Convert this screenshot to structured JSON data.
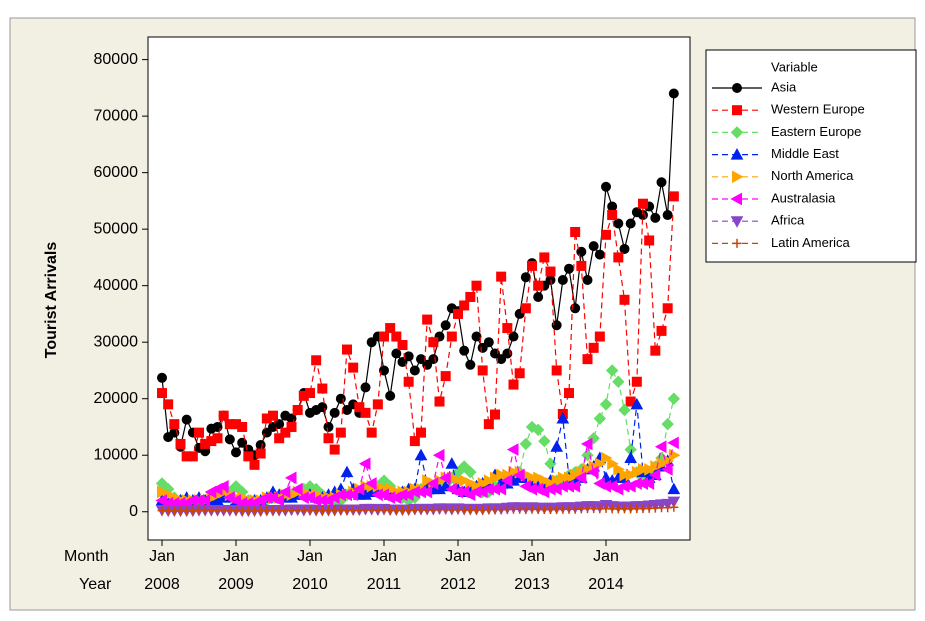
{
  "chart_data": {
    "type": "line",
    "ylabel": "Tourist Arrivals",
    "month_label": "Month",
    "year_label": "Year",
    "categories": [
      "Jan",
      null,
      null,
      null,
      null,
      null,
      null,
      null,
      null,
      null,
      null,
      null,
      "Jan",
      null,
      null,
      null,
      null,
      null,
      null,
      null,
      null,
      null,
      null,
      null,
      "Jan",
      null,
      null,
      null,
      null,
      null,
      null,
      null,
      null,
      null,
      null,
      null,
      "Jan",
      null,
      null,
      null,
      null,
      null,
      null,
      null,
      null,
      null,
      null,
      null,
      "Jan",
      null,
      null,
      null,
      null,
      null,
      null,
      null,
      null,
      null,
      null,
      null,
      "Jan",
      null,
      null,
      null,
      null,
      null,
      null,
      null,
      null,
      null,
      null,
      null,
      "Jan",
      null,
      null,
      null,
      null,
      null,
      null,
      null,
      null,
      null,
      null,
      null
    ],
    "years": [
      2008,
      null,
      null,
      null,
      null,
      null,
      null,
      null,
      null,
      null,
      null,
      null,
      2009,
      null,
      null,
      null,
      null,
      null,
      null,
      null,
      null,
      null,
      null,
      null,
      2010,
      null,
      null,
      null,
      null,
      null,
      null,
      null,
      null,
      null,
      null,
      null,
      2011,
      null,
      null,
      null,
      null,
      null,
      null,
      null,
      null,
      null,
      null,
      null,
      2012,
      null,
      null,
      null,
      null,
      null,
      null,
      null,
      null,
      null,
      null,
      null,
      2013,
      null,
      null,
      null,
      null,
      null,
      null,
      null,
      null,
      null,
      null,
      null,
      2014,
      null,
      null,
      null,
      null,
      null,
      null,
      null,
      null,
      null,
      null,
      null
    ],
    "ylim": [
      -5000,
      84000
    ],
    "yticks": [
      0,
      10000,
      20000,
      30000,
      40000,
      50000,
      60000,
      70000,
      80000
    ],
    "legend": "right",
    "legend_title": "Variable",
    "series": [
      {
        "name": "Asia",
        "color": "#000000",
        "marker": "circle",
        "line_style": "solid",
        "values": [
          23700,
          13200,
          14000,
          11500,
          16300,
          14000,
          11300,
          10700,
          14700,
          15000,
          17000,
          12800,
          10500,
          12200,
          11000,
          10000,
          11800,
          14000,
          15000,
          15500,
          17000,
          16500,
          18000,
          21000,
          17500,
          18000,
          18500,
          15000,
          17500,
          20000,
          18000,
          19000,
          17500,
          22000,
          30000,
          31000,
          25000,
          20500,
          28000,
          26500,
          27500,
          25000,
          27000,
          26000,
          27000,
          31000,
          33000,
          36000,
          35500,
          28500,
          26000,
          31000,
          29000,
          30000,
          28000,
          27000,
          28000,
          31000,
          35000,
          41500,
          44000,
          38000,
          40000,
          41000,
          33000,
          41000,
          43000,
          36000,
          46000,
          41000,
          47000,
          45500,
          57500,
          54000,
          51000,
          46500,
          51000,
          53000,
          52500,
          54000,
          52000,
          58300,
          52500,
          74000
        ]
      },
      {
        "name": "Western Europe",
        "color": "#ff0000",
        "marker": "square",
        "line_style": "dashed",
        "values": [
          21000,
          19000,
          15500,
          12000,
          9800,
          9800,
          14000,
          12000,
          12500,
          13000,
          17000,
          15500,
          15500,
          15000,
          9800,
          8300,
          10300,
          16500,
          17000,
          13000,
          14000,
          15000,
          18000,
          20500,
          21000,
          26800,
          21800,
          13000,
          11000,
          14000,
          28700,
          25500,
          18500,
          17500,
          14000,
          19000,
          31000,
          32500,
          31000,
          29500,
          23000,
          12500,
          14000,
          34000,
          30000,
          19500,
          24000,
          31000,
          35000,
          36500,
          38000,
          40000,
          25000,
          15500,
          17200,
          41600,
          32500,
          22500,
          24500,
          36000,
          43500,
          40000,
          45000,
          42500,
          25000,
          17300,
          21000,
          49500,
          43500,
          27000,
          29000,
          31000,
          49000,
          52500,
          45000,
          37500,
          19500,
          23000,
          54500,
          48000,
          28500,
          32000,
          36000,
          55800
        ]
      },
      {
        "name": "Eastern Europe",
        "color": "#66dd66",
        "marker": "diamond",
        "line_style": "dashed",
        "values": [
          5000,
          4000,
          2500,
          2000,
          1500,
          1500,
          2000,
          2000,
          2500,
          3000,
          3500,
          3500,
          4500,
          3500,
          2000,
          1500,
          1500,
          2000,
          2500,
          2500,
          3000,
          3000,
          3500,
          4000,
          4500,
          4000,
          3000,
          2000,
          1500,
          2000,
          3000,
          3500,
          3500,
          3500,
          4000,
          4500,
          5500,
          4500,
          3000,
          2500,
          2000,
          2500,
          4000,
          4500,
          4000,
          4500,
          5000,
          6000,
          7000,
          8000,
          7000,
          4500,
          3500,
          3500,
          4500,
          5000,
          5000,
          6000,
          7000,
          12000,
          15000,
          14500,
          12500,
          8500,
          5500,
          5000,
          6500,
          7000,
          7500,
          10000,
          13000,
          16500,
          19000,
          25000,
          23000,
          18000,
          11000,
          7000,
          6000,
          7000,
          8000,
          9500,
          15500,
          20000
        ]
      },
      {
        "name": "Middle East",
        "color": "#0022ee",
        "marker": "triangle-up",
        "line_style": "dashed",
        "values": [
          2000,
          1500,
          1500,
          2000,
          2500,
          2000,
          2500,
          2000,
          2000,
          2000,
          2500,
          2500,
          2000,
          1500,
          1500,
          2000,
          2000,
          2500,
          3500,
          3000,
          2500,
          2500,
          3000,
          3000,
          3000,
          2500,
          2500,
          3000,
          3500,
          4000,
          7000,
          4000,
          3000,
          3000,
          3500,
          4000,
          3500,
          3000,
          3000,
          3500,
          4000,
          4000,
          10000,
          5000,
          4000,
          4000,
          4500,
          8500,
          4000,
          3500,
          4000,
          4500,
          5000,
          4500,
          6500,
          5000,
          5000,
          5500,
          6000,
          6000,
          5000,
          4500,
          5000,
          5500,
          11500,
          16500,
          6000,
          5500,
          6000,
          7500,
          8000,
          9500,
          6000,
          5500,
          6000,
          6000,
          9500,
          19000,
          7000,
          6000,
          6500,
          8000,
          9000,
          4000
        ]
      },
      {
        "name": "North America",
        "color": "#ffa500",
        "marker": "triangle-right",
        "line_style": "dashed",
        "values": [
          3500,
          3000,
          2500,
          2000,
          2000,
          2000,
          2000,
          2000,
          2500,
          3000,
          3500,
          3000,
          2500,
          2500,
          2000,
          2000,
          2000,
          2500,
          2500,
          2500,
          3000,
          3000,
          3500,
          3500,
          3000,
          3000,
          2500,
          2500,
          2500,
          3000,
          3000,
          3500,
          4000,
          4500,
          4500,
          4500,
          4000,
          4000,
          3500,
          3500,
          3500,
          4000,
          4000,
          5500,
          5000,
          5500,
          6000,
          6000,
          5500,
          5500,
          5000,
          4500,
          5000,
          5500,
          6000,
          6500,
          6500,
          7000,
          7000,
          6500,
          6000,
          6000,
          5500,
          5000,
          5500,
          6000,
          6000,
          6500,
          7000,
          7500,
          8000,
          8500,
          9500,
          8500,
          7500,
          6500,
          6500,
          7000,
          7500,
          7500,
          8000,
          8500,
          9000,
          10000
        ]
      },
      {
        "name": "Australasia",
        "color": "#ff00ff",
        "marker": "triangle-left",
        "line_style": "dashed",
        "values": [
          2000,
          1500,
          1500,
          1500,
          1500,
          2000,
          2000,
          2000,
          3500,
          4000,
          4500,
          2500,
          2000,
          1500,
          1500,
          1500,
          2000,
          2500,
          2500,
          2000,
          3500,
          6000,
          4000,
          2500,
          2500,
          2000,
          2000,
          2000,
          2500,
          3000,
          3000,
          3000,
          4000,
          8500,
          5000,
          3000,
          3000,
          2500,
          2500,
          3000,
          3000,
          3500,
          3500,
          3500,
          5000,
          10000,
          6000,
          4000,
          3500,
          3500,
          3000,
          3500,
          3500,
          4000,
          4000,
          4000,
          5500,
          11000,
          6500,
          4500,
          4000,
          4000,
          3500,
          4000,
          4000,
          4500,
          4500,
          4500,
          6000,
          12000,
          7000,
          5000,
          4500,
          4500,
          4000,
          4500,
          4500,
          5000,
          5000,
          5000,
          6500,
          11500,
          7500,
          12200
        ]
      },
      {
        "name": "Africa",
        "color": "#8844cc",
        "marker": "triangle-down",
        "line_style": "dashed",
        "values": [
          300,
          200,
          200,
          200,
          200,
          200,
          300,
          300,
          300,
          300,
          300,
          300,
          300,
          200,
          200,
          200,
          200,
          300,
          300,
          300,
          300,
          400,
          400,
          300,
          400,
          300,
          300,
          300,
          300,
          400,
          400,
          400,
          400,
          500,
          500,
          400,
          500,
          400,
          400,
          400,
          400,
          500,
          500,
          500,
          500,
          600,
          600,
          500,
          600,
          500,
          500,
          500,
          500,
          600,
          600,
          600,
          700,
          800,
          800,
          700,
          800,
          700,
          700,
          700,
          700,
          800,
          800,
          800,
          900,
          1000,
          1000,
          900,
          1200,
          1000,
          900,
          900,
          900,
          1000,
          1000,
          1100,
          1200,
          1300,
          1400,
          1800
        ]
      },
      {
        "name": "Latin America",
        "color": "#cc4400",
        "marker": "cross",
        "line_style": "dashed",
        "values": [
          200,
          150,
          150,
          150,
          150,
          150,
          200,
          200,
          200,
          200,
          200,
          200,
          200,
          150,
          150,
          150,
          150,
          200,
          200,
          200,
          200,
          250,
          250,
          200,
          250,
          200,
          200,
          200,
          200,
          250,
          250,
          250,
          250,
          300,
          300,
          250,
          300,
          250,
          250,
          250,
          250,
          300,
          300,
          300,
          300,
          350,
          350,
          300,
          350,
          300,
          300,
          300,
          300,
          350,
          350,
          350,
          400,
          450,
          450,
          400,
          450,
          400,
          400,
          400,
          400,
          450,
          450,
          450,
          500,
          550,
          550,
          500,
          600,
          500,
          500,
          500,
          500,
          550,
          550,
          600,
          650,
          700,
          700,
          800
        ]
      }
    ]
  }
}
